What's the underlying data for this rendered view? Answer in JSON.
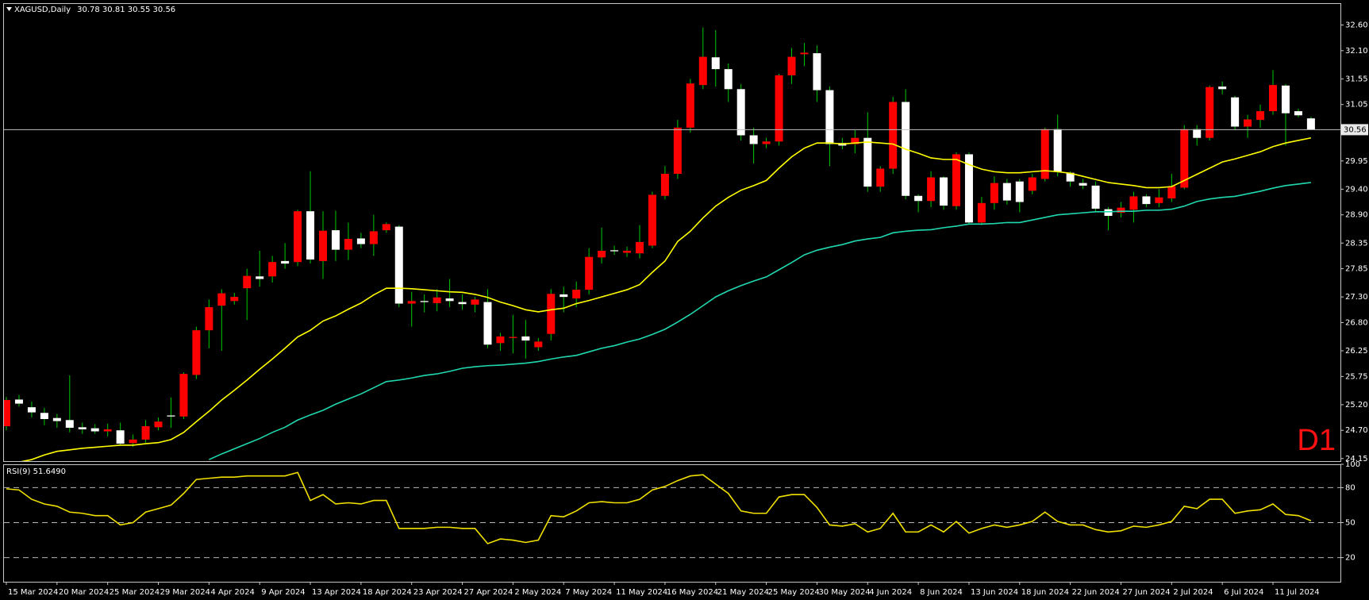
{
  "chart_data": [
    {
      "type": "candlestick",
      "title": "XAGUSD,Daily",
      "subtitle": "30.78 30.81 30.55 30.56",
      "annotation": "D1",
      "categories": [
        "15 Mar 2024",
        null,
        null,
        null,
        "20 Mar 2024",
        null,
        null,
        null,
        "25 Mar 2024",
        null,
        null,
        null,
        "29 Mar 2024",
        null,
        null,
        null,
        "4 Apr 2024",
        null,
        null,
        null,
        "9 Apr 2024",
        null,
        null,
        null,
        "13 Apr 2024",
        null,
        null,
        null,
        "18 Apr 2024",
        null,
        null,
        null,
        "23 Apr 2024",
        null,
        null,
        null,
        "27 Apr 2024",
        null,
        null,
        null,
        "2 May 2024",
        null,
        null,
        null,
        "7 May 2024",
        null,
        null,
        null,
        "11 May 2024",
        null,
        null,
        null,
        "16 May 2024",
        null,
        null,
        null,
        "21 May 2024",
        null,
        null,
        null,
        "25 May 2024",
        null,
        null,
        null,
        "30 May 2024",
        null,
        null,
        null,
        "4 Jun 2024",
        null,
        null,
        null,
        "8 Jun 2024",
        null,
        null,
        null,
        "13 Jun 2024",
        null,
        null,
        null,
        "18 Jun 2024",
        null,
        null,
        null,
        "22 Jun 2024",
        null,
        null,
        null,
        "27 Jun 2024",
        null,
        null,
        null,
        "2 Jul 2024",
        null,
        null,
        null,
        "6 Jul 2024",
        null,
        null,
        null,
        "11 Jul 2024",
        null,
        null,
        null
      ],
      "open": [
        24.78,
        25.3,
        25.15,
        25.04,
        24.94,
        24.9,
        24.76,
        24.74,
        24.68,
        24.7,
        24.45,
        24.52,
        24.76,
        24.99,
        24.97,
        25.78,
        26.65,
        27.13,
        27.22,
        27.47,
        27.7,
        27.7,
        28.0,
        27.98,
        28.97,
        28.0,
        28.6,
        28.22,
        28.44,
        28.33,
        28.6,
        28.67,
        27.17,
        27.22,
        27.18,
        27.27,
        27.2,
        27.15,
        27.2,
        26.4,
        26.5,
        26.53,
        26.32,
        26.58,
        27.35,
        27.27,
        27.44,
        28.07,
        28.21,
        28.16,
        28.15,
        28.3,
        29.27,
        29.7,
        30.6,
        31.43,
        31.97,
        31.74,
        31.35,
        30.45,
        30.28,
        30.33,
        31.62,
        32.03,
        32.05,
        31.33,
        30.3,
        30.28,
        30.4,
        29.45,
        29.8,
        31.1,
        29.27,
        29.17,
        29.63,
        29.07,
        30.08,
        28.75,
        29.13,
        29.52,
        29.55,
        29.37,
        29.6,
        30.57,
        29.72,
        29.52,
        29.47,
        29.01,
        28.94,
        29.0,
        29.26,
        29.13,
        29.22,
        29.43,
        30.57,
        30.4,
        31.4,
        31.19,
        30.62,
        30.75,
        30.92,
        31.42,
        30.92,
        30.78
      ],
      "high": [
        25.35,
        25.39,
        25.26,
        25.14,
        25.02,
        25.77,
        24.85,
        24.82,
        24.83,
        24.85,
        24.62,
        24.9,
        24.95,
        25.34,
        25.83,
        26.72,
        27.25,
        27.45,
        27.38,
        27.85,
        28.2,
        28.1,
        28.35,
        29.0,
        29.75,
        28.97,
        28.98,
        28.75,
        28.55,
        28.9,
        28.75,
        28.7,
        27.4,
        27.35,
        27.45,
        27.65,
        27.35,
        27.3,
        27.45,
        26.6,
        26.95,
        26.85,
        26.5,
        27.45,
        27.5,
        27.6,
        28.25,
        28.65,
        28.3,
        28.28,
        28.7,
        29.35,
        29.85,
        30.75,
        31.55,
        32.55,
        32.5,
        31.85,
        31.45,
        30.6,
        30.4,
        31.65,
        32.15,
        32.25,
        32.2,
        31.4,
        30.4,
        30.55,
        30.9,
        29.85,
        31.2,
        31.35,
        29.3,
        29.75,
        29.65,
        30.12,
        30.12,
        29.25,
        29.65,
        29.6,
        29.6,
        29.7,
        30.6,
        30.85,
        29.75,
        29.6,
        29.55,
        29.05,
        29.15,
        29.35,
        29.3,
        29.4,
        29.7,
        30.65,
        30.65,
        31.42,
        31.5,
        31.22,
        30.85,
        31.05,
        31.72,
        31.45,
        30.97,
        30.81
      ],
      "low": [
        24.7,
        25.16,
        24.95,
        24.8,
        24.75,
        24.66,
        24.63,
        24.63,
        24.58,
        24.41,
        24.38,
        24.46,
        24.7,
        24.75,
        24.92,
        25.7,
        26.3,
        26.25,
        27.15,
        26.85,
        27.5,
        27.58,
        27.85,
        27.9,
        27.95,
        27.65,
        28.0,
        28.02,
        28.25,
        28.1,
        28.55,
        27.1,
        26.72,
        27.0,
        27.02,
        27.1,
        27.05,
        27.0,
        26.3,
        26.25,
        26.2,
        26.1,
        26.25,
        26.45,
        27.0,
        27.1,
        27.35,
        27.95,
        28.12,
        28.08,
        28.05,
        28.25,
        29.2,
        29.6,
        30.5,
        31.35,
        31.4,
        31.1,
        30.35,
        29.9,
        30.2,
        30.25,
        31.45,
        31.8,
        31.1,
        29.85,
        30.18,
        30.1,
        29.35,
        29.35,
        29.7,
        29.2,
        28.95,
        29.05,
        29.0,
        29.0,
        28.72,
        28.7,
        29.0,
        29.1,
        28.95,
        29.3,
        29.55,
        29.65,
        29.45,
        29.4,
        28.95,
        28.6,
        28.85,
        28.75,
        29.05,
        29.05,
        29.15,
        29.4,
        30.25,
        30.35,
        31.25,
        30.55,
        30.4,
        30.6,
        30.85,
        30.25,
        30.8,
        30.55
      ],
      "close": [
        25.29,
        25.22,
        25.05,
        24.92,
        24.88,
        24.75,
        24.72,
        24.68,
        24.72,
        24.44,
        24.52,
        24.78,
        24.87,
        24.97,
        25.8,
        26.65,
        27.1,
        27.37,
        27.3,
        27.71,
        27.65,
        27.98,
        27.95,
        28.97,
        28.03,
        28.59,
        28.22,
        28.43,
        28.33,
        28.58,
        28.72,
        27.17,
        27.22,
        27.2,
        27.29,
        27.22,
        27.16,
        27.25,
        26.37,
        26.53,
        26.52,
        26.45,
        26.43,
        27.36,
        27.3,
        27.44,
        28.08,
        28.2,
        28.19,
        28.2,
        28.37,
        29.29,
        29.7,
        30.6,
        31.46,
        31.98,
        31.74,
        31.35,
        30.45,
        30.28,
        30.33,
        31.62,
        31.98,
        32.06,
        31.33,
        30.28,
        30.25,
        30.4,
        29.45,
        29.8,
        31.1,
        29.27,
        29.17,
        29.63,
        29.08,
        30.08,
        28.75,
        29.13,
        29.52,
        29.18,
        29.15,
        29.63,
        30.57,
        29.74,
        29.55,
        29.47,
        29.02,
        28.88,
        29.04,
        29.26,
        29.11,
        29.24,
        29.46,
        30.57,
        30.4,
        31.39,
        31.35,
        30.62,
        30.76,
        30.92,
        31.43,
        30.88,
        30.84,
        30.56
      ],
      "series": [
        {
          "color": "#ffff00",
          "values": [
            24.01,
            24.08,
            24.13,
            24.22,
            24.29,
            24.32,
            24.35,
            24.37,
            24.39,
            24.41,
            24.41,
            24.44,
            24.46,
            24.52,
            24.66,
            24.87,
            25.07,
            25.29,
            25.48,
            25.68,
            25.89,
            26.09,
            26.3,
            26.52,
            26.65,
            26.83,
            26.93,
            27.06,
            27.18,
            27.34,
            27.47,
            27.47,
            27.46,
            27.44,
            27.42,
            27.4,
            27.39,
            27.35,
            27.29,
            27.2,
            27.13,
            27.05,
            27.01,
            27.05,
            27.08,
            27.17,
            27.23,
            27.3,
            27.37,
            27.44,
            27.54,
            27.78,
            28.0,
            28.38,
            28.58,
            28.84,
            29.07,
            29.24,
            29.38,
            29.47,
            29.57,
            29.81,
            30.03,
            30.2,
            30.3,
            30.3,
            30.28,
            30.3,
            30.32,
            30.3,
            30.28,
            30.18,
            30.1,
            30.01,
            29.98,
            29.98,
            29.88,
            29.79,
            29.74,
            29.72,
            29.72,
            29.74,
            29.76,
            29.74,
            29.71,
            29.65,
            29.59,
            29.53,
            29.5,
            29.47,
            29.43,
            29.43,
            29.45,
            29.57,
            29.69,
            29.81,
            29.93,
            29.99,
            30.06,
            30.13,
            30.23,
            30.3,
            30.35,
            30.4
          ]
        },
        {
          "color": "#20d8b0",
          "values": [
            null,
            null,
            null,
            null,
            null,
            null,
            null,
            null,
            null,
            null,
            null,
            null,
            null,
            null,
            null,
            null,
            24.13,
            24.24,
            24.34,
            24.44,
            24.54,
            24.66,
            24.76,
            24.9,
            25.0,
            25.09,
            25.21,
            25.31,
            25.41,
            25.53,
            25.65,
            25.68,
            25.72,
            25.77,
            25.8,
            25.85,
            25.91,
            25.94,
            25.96,
            25.97,
            25.99,
            26.01,
            26.04,
            26.09,
            26.13,
            26.16,
            26.23,
            26.3,
            26.35,
            26.42,
            26.48,
            26.57,
            26.67,
            26.81,
            26.96,
            27.13,
            27.3,
            27.42,
            27.52,
            27.61,
            27.69,
            27.83,
            27.97,
            28.12,
            28.21,
            28.27,
            28.32,
            28.39,
            28.43,
            28.46,
            28.55,
            28.58,
            28.6,
            28.61,
            28.65,
            28.68,
            28.72,
            28.72,
            28.73,
            28.75,
            28.75,
            28.8,
            28.85,
            28.9,
            28.92,
            28.94,
            28.96,
            28.96,
            28.97,
            28.97,
            28.99,
            28.99,
            29.01,
            29.07,
            29.16,
            29.21,
            29.24,
            29.26,
            29.31,
            29.36,
            29.42,
            29.47,
            29.5,
            29.53
          ]
        }
      ],
      "bull_color": "#ff0000",
      "bear_color": "#ffffff",
      "wick_color": "#00c800",
      "current_price": 30.56,
      "ylim": [
        24.1,
        33.01
      ],
      "yticks": [
        24.15,
        {
          "value": 24.7,
          "label": "24.70"
        },
        {
          "value": 25.2,
          "label": "25.20"
        },
        25.75,
        26.25,
        {
          "value": 26.8,
          "label": "26.80"
        },
        {
          "value": 27.3,
          "label": "27.30"
        },
        27.85,
        28.35,
        {
          "value": 28.9,
          "label": "28.90"
        },
        {
          "value": 29.4,
          "label": "29.40"
        },
        29.95,
        31.05,
        31.55,
        {
          "value": 32.1,
          "label": "32.10"
        },
        {
          "value": 32.6,
          "label": "32.60"
        }
      ]
    },
    {
      "type": "line",
      "title": "RSI(9) 51.6490",
      "series": [
        {
          "color": "#f0e000",
          "values": [
            79,
            78,
            70,
            66,
            64,
            59,
            58,
            56,
            56,
            48,
            50,
            59,
            62,
            65,
            75,
            87,
            88,
            89,
            89,
            90,
            90,
            90,
            90,
            93,
            69,
            74,
            66,
            67,
            66,
            69,
            69,
            45,
            45,
            45,
            46,
            46,
            45,
            45,
            32,
            36,
            35,
            33,
            35,
            56,
            55,
            60,
            67,
            68,
            67,
            67,
            70,
            78,
            81,
            86,
            90,
            91,
            83,
            75,
            60,
            58,
            58,
            72,
            74,
            74,
            63,
            48,
            47,
            49,
            42,
            45,
            58,
            42,
            42,
            48,
            42,
            51,
            41,
            45,
            48,
            46,
            48,
            51,
            59,
            51,
            48,
            48,
            44,
            42,
            43,
            47,
            46,
            48,
            51,
            64,
            62,
            70,
            70,
            58,
            60,
            61,
            66,
            57,
            56,
            51.649
          ]
        }
      ],
      "ylim": [
        0,
        100
      ],
      "yticks": [
        20,
        50,
        80,
        100
      ],
      "levels": [
        20,
        50,
        80
      ]
    }
  ]
}
